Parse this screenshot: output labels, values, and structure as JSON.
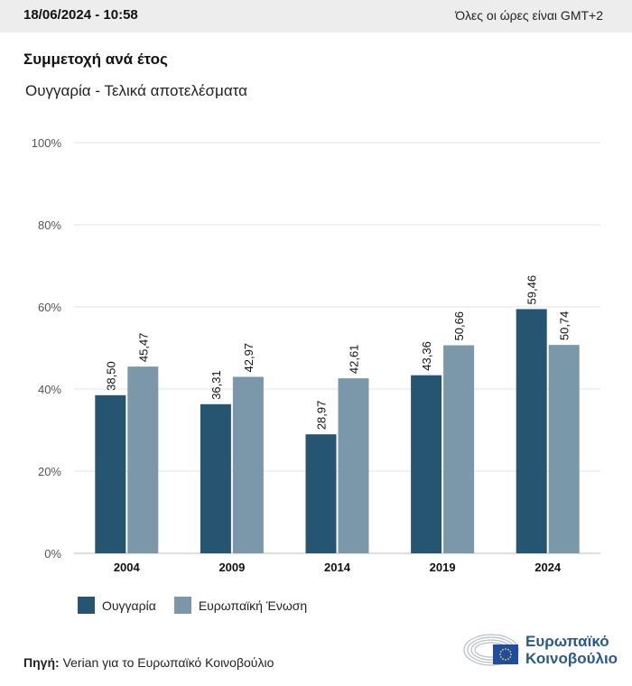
{
  "header": {
    "datetime": "18/06/2024 - 10:58",
    "timezone_note": "Όλες οι ώρες είναι GMT+2"
  },
  "title": "Συμμετοχή ανά έτος",
  "subtitle": "Ουγγαρία - Τελικά αποτελέσματα",
  "source": {
    "label": "Πηγή:",
    "text": "Verian για το Ευρωπαϊκό Κοινοβούλιο"
  },
  "logo": {
    "line1": "Ευρωπαϊκό",
    "line2": "Κοινοβούλιο"
  },
  "colors": {
    "hungary": "#265571",
    "eu": "#7b98ab",
    "grid": "#e3e3e3"
  },
  "chart_data": {
    "type": "bar",
    "title": "Συμμετοχή ανά έτος",
    "subtitle": "Ουγγαρία - Τελικά αποτελέσματα",
    "categories": [
      "2004",
      "2009",
      "2014",
      "2019",
      "2024"
    ],
    "series": [
      {
        "name": "Ουγγαρία",
        "values": [
          38.5,
          36.31,
          28.97,
          43.36,
          59.46
        ],
        "labels": [
          "38,50",
          "36,31",
          "28,97",
          "43,36",
          "59,46"
        ]
      },
      {
        "name": "Ευρωπαϊκή Ένωση",
        "values": [
          45.47,
          42.97,
          42.61,
          50.66,
          50.74
        ],
        "labels": [
          "45,47",
          "42,97",
          "42,61",
          "50,66",
          "50,74"
        ]
      }
    ],
    "yticks": [
      "0%",
      "20%",
      "40%",
      "60%",
      "80%",
      "100%"
    ],
    "ylim": [
      0,
      100
    ],
    "xlabel": "",
    "ylabel": "",
    "grid": true,
    "legend": "bottom-left"
  }
}
